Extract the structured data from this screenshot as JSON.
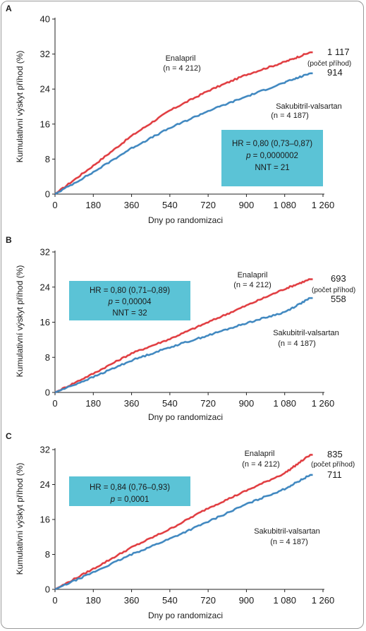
{
  "figure": {
    "xlabel": "Dny po randomizaci",
    "ylabel": "Kumulativní výskyt příhod (%)"
  },
  "chart_data": [
    {
      "type": "line",
      "panel": "A",
      "xlabel": "Dny po randomizaci",
      "ylabel": "Kumulativní výskyt příhod (%)",
      "xlim": [
        0,
        1260
      ],
      "ylim": [
        0,
        40
      ],
      "x_ticks": [
        "0",
        "180",
        "360",
        "540",
        "720",
        "900",
        "1 080",
        "1 260"
      ],
      "y_ticks": [
        "0",
        "8",
        "16",
        "24",
        "32",
        "40"
      ],
      "stats_box": {
        "hr": "HR = 0,80 (0,73–0,87)",
        "p": "p = 0,0000002",
        "p_letter": "p",
        "p_value": " = 0,0000002",
        "nnt": "NNT = 21"
      },
      "series": [
        {
          "name": "Enalapril",
          "n": "(n = 4 212)",
          "events": "1 117",
          "events_label": "(počet příhod)",
          "color": "#e03a3e",
          "x": [
            0,
            180,
            360,
            540,
            720,
            900,
            1080,
            1200
          ],
          "values": [
            0,
            6.5,
            13.3,
            19.1,
            23.6,
            27.3,
            30.2,
            32.4
          ]
        },
        {
          "name": "Sakubitril-valsartan",
          "n": "(n = 4 187)",
          "events": "914",
          "color": "#3d86bf",
          "x": [
            0,
            180,
            360,
            540,
            720,
            900,
            1080,
            1200
          ],
          "values": [
            0,
            5.0,
            10.5,
            15.1,
            19.0,
            22.3,
            25.5,
            27.6
          ]
        }
      ]
    },
    {
      "type": "line",
      "panel": "B",
      "xlabel": "Dny po randomizaci",
      "ylabel": "Kumulativní výskyt příhod (%)",
      "xlim": [
        0,
        1260
      ],
      "ylim": [
        0,
        32
      ],
      "x_ticks": [
        "0",
        "180",
        "360",
        "540",
        "720",
        "900",
        "1 080",
        "1 260"
      ],
      "y_ticks": [
        "0",
        "8",
        "16",
        "24",
        "32"
      ],
      "stats_box": {
        "hr": "HR = 0,80 (0,71–0,89)",
        "p": "p = 0,00004",
        "p_letter": "p",
        "p_value": " = 0,00004",
        "nnt": "NNT = 32"
      },
      "series": [
        {
          "name": "Enalapril",
          "n": "(n = 4 212)",
          "events": "693",
          "events_label": "(počet příhod)",
          "color": "#e03a3e",
          "x": [
            0,
            180,
            360,
            540,
            720,
            900,
            1080,
            1200
          ],
          "values": [
            0,
            4.3,
            8.9,
            12.2,
            16.0,
            19.8,
            23.6,
            25.8
          ]
        },
        {
          "name": "Sakubitril-valsartan",
          "n": "(n = 4 187)",
          "events": "558",
          "color": "#3d86bf",
          "x": [
            0,
            180,
            360,
            540,
            720,
            900,
            1080,
            1200
          ],
          "values": [
            0,
            3.5,
            7.3,
            10.3,
            13.0,
            15.8,
            18.3,
            21.5
          ]
        }
      ]
    },
    {
      "type": "line",
      "panel": "C",
      "xlabel": "Dny po randomizaci",
      "ylabel": "Kumulativní výskyt příhod (%)",
      "xlim": [
        0,
        1260
      ],
      "ylim": [
        0,
        32
      ],
      "x_ticks": [
        "0",
        "180",
        "360",
        "540",
        "720",
        "900",
        "1 080",
        "1 260"
      ],
      "y_ticks": [
        "0",
        "8",
        "16",
        "24",
        "32"
      ],
      "stats_box": {
        "hr": "HR = 0,84 (0,76–0,93)",
        "p": "p = 0,0001",
        "p_letter": "p",
        "p_value": " = 0,0001",
        "nnt": ""
      },
      "series": [
        {
          "name": "Enalapril",
          "n": "(n = 4 212)",
          "events": "835",
          "events_label": "(počet příhod)",
          "color": "#e03a3e",
          "x": [
            0,
            180,
            360,
            540,
            720,
            900,
            1080,
            1200
          ],
          "values": [
            0,
            4.7,
            9.6,
            13.8,
            18.6,
            22.6,
            26.6,
            30.8
          ]
        },
        {
          "name": "Sakubitril-valsartan",
          "n": "(n = 4 187)",
          "events": "711",
          "color": "#3d86bf",
          "x": [
            0,
            180,
            360,
            540,
            720,
            900,
            1080,
            1200
          ],
          "values": [
            0,
            3.9,
            8.0,
            11.6,
            15.5,
            19.5,
            23.0,
            26.2
          ]
        }
      ]
    }
  ]
}
